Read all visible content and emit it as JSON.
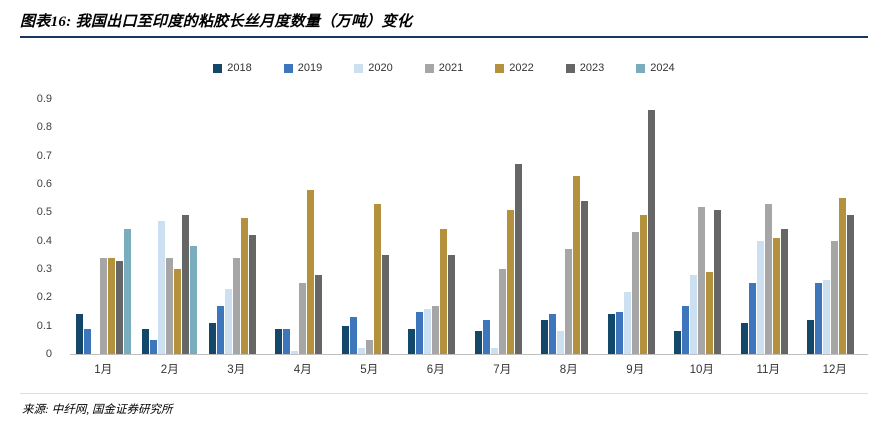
{
  "header": {
    "title": "图表16: 我国出口至印度的粘胶长丝月度数量（万吨）变化",
    "rule_color": "#17375E"
  },
  "footer": {
    "source": "来源: 中纤网, 国金证券研究所"
  },
  "chart_data": {
    "type": "bar",
    "title": "我国出口至印度的粘胶长丝月度数量（万吨）变化",
    "xlabel": "",
    "ylabel": "",
    "ylim": [
      0,
      0.9
    ],
    "y_ticks": [
      "0",
      "0.1",
      "0.2",
      "0.3",
      "0.4",
      "0.5",
      "0.6",
      "0.7",
      "0.8",
      "0.9"
    ],
    "grid": false,
    "legend_position": "top",
    "categories": [
      "1月",
      "2月",
      "3月",
      "4月",
      "5月",
      "6月",
      "7月",
      "8月",
      "9月",
      "10月",
      "11月",
      "12月"
    ],
    "series": [
      {
        "name": "2018",
        "color": "#14486B",
        "values": [
          0.14,
          0.09,
          0.11,
          0.09,
          0.1,
          0.09,
          0.08,
          0.12,
          0.14,
          0.08,
          0.11,
          0.12
        ]
      },
      {
        "name": "2019",
        "color": "#3D76BC",
        "values": [
          0.09,
          0.05,
          0.17,
          0.09,
          0.13,
          0.15,
          0.12,
          0.14,
          0.15,
          0.17,
          0.25,
          0.25
        ]
      },
      {
        "name": "2020",
        "color": "#CDE0F1",
        "values": [
          0.0,
          0.47,
          0.23,
          0.01,
          0.02,
          0.16,
          0.02,
          0.08,
          0.22,
          0.28,
          0.4,
          0.26
        ]
      },
      {
        "name": "2021",
        "color": "#A6A6A6",
        "values": [
          0.34,
          0.34,
          0.34,
          0.25,
          0.05,
          0.17,
          0.3,
          0.37,
          0.43,
          0.52,
          0.53,
          0.4
        ]
      },
      {
        "name": "2022",
        "color": "#B4913D",
        "values": [
          0.34,
          0.3,
          0.48,
          0.58,
          0.53,
          0.44,
          0.51,
          0.63,
          0.49,
          0.29,
          0.41,
          0.55
        ]
      },
      {
        "name": "2023",
        "color": "#666666",
        "values": [
          0.33,
          0.49,
          0.42,
          0.28,
          0.35,
          0.35,
          0.67,
          0.54,
          0.86,
          0.51,
          0.44,
          0.49
        ]
      },
      {
        "name": "2024",
        "color": "#79ADBD",
        "values": [
          0.44,
          0.38,
          0,
          0,
          0,
          0,
          0,
          0,
          0,
          0,
          0,
          0
        ]
      }
    ]
  }
}
